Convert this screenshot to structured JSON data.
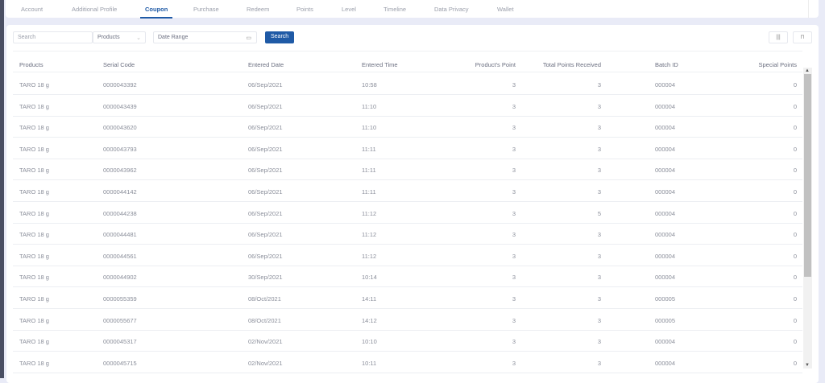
{
  "tabs": [
    "Account",
    "Additional Profile",
    "Coupon",
    "Purchase",
    "Redeem",
    "Points",
    "Level",
    "Timeline",
    "Data Privacy",
    "Wallet"
  ],
  "active_tab": "Coupon",
  "filters": {
    "search_placeholder": "Search",
    "category": "Products",
    "date_placeholder": "Date Range",
    "search_button": "Search"
  },
  "icons": {
    "columns": "columns-icon",
    "export": "export-icon",
    "calendar": "calendar-icon",
    "chevron": "chevron-down-icon"
  },
  "columns": [
    "Products",
    "Serial Code",
    "Entered Date",
    "Entered Time",
    "Product's Point",
    "Total Points Received",
    "Batch ID",
    "Special Points"
  ],
  "rows": [
    [
      "TARO 18 g",
      "0000043392",
      "06/Sep/2021",
      "10:58",
      "3",
      "3",
      "000004",
      "0"
    ],
    [
      "TARO 18 g",
      "0000043439",
      "06/Sep/2021",
      "11:10",
      "3",
      "3",
      "000004",
      "0"
    ],
    [
      "TARO 18 g",
      "0000043620",
      "06/Sep/2021",
      "11:10",
      "3",
      "3",
      "000004",
      "0"
    ],
    [
      "TARO 18 g",
      "0000043793",
      "06/Sep/2021",
      "11:11",
      "3",
      "3",
      "000004",
      "0"
    ],
    [
      "TARO 18 g",
      "0000043962",
      "06/Sep/2021",
      "11:11",
      "3",
      "3",
      "000004",
      "0"
    ],
    [
      "TARO 18 g",
      "0000044142",
      "06/Sep/2021",
      "11:11",
      "3",
      "3",
      "000004",
      "0"
    ],
    [
      "TARO 18 g",
      "0000044238",
      "06/Sep/2021",
      "11:12",
      "3",
      "5",
      "000004",
      "0"
    ],
    [
      "TARO 18 g",
      "0000044481",
      "06/Sep/2021",
      "11:12",
      "3",
      "3",
      "000004",
      "0"
    ],
    [
      "TARO 18 g",
      "0000044561",
      "06/Sep/2021",
      "11:12",
      "3",
      "3",
      "000004",
      "0"
    ],
    [
      "TARO 18 g",
      "0000044902",
      "30/Sep/2021",
      "10:14",
      "3",
      "3",
      "000004",
      "0"
    ],
    [
      "TARO 18 g",
      "0000055359",
      "08/Oct/2021",
      "14:11",
      "3",
      "3",
      "000005",
      "0"
    ],
    [
      "TARO 18 g",
      "0000055677",
      "08/Oct/2021",
      "14:12",
      "3",
      "3",
      "000005",
      "0"
    ],
    [
      "TARO 18 g",
      "0000045317",
      "02/Nov/2021",
      "10:10",
      "3",
      "3",
      "000004",
      "0"
    ],
    [
      "TARO 18 g",
      "0000045715",
      "02/Nov/2021",
      "10:11",
      "3",
      "3",
      "000004",
      "0"
    ]
  ],
  "colors": {
    "accent": "#1f5aa6",
    "background": "#e9ebf7"
  }
}
